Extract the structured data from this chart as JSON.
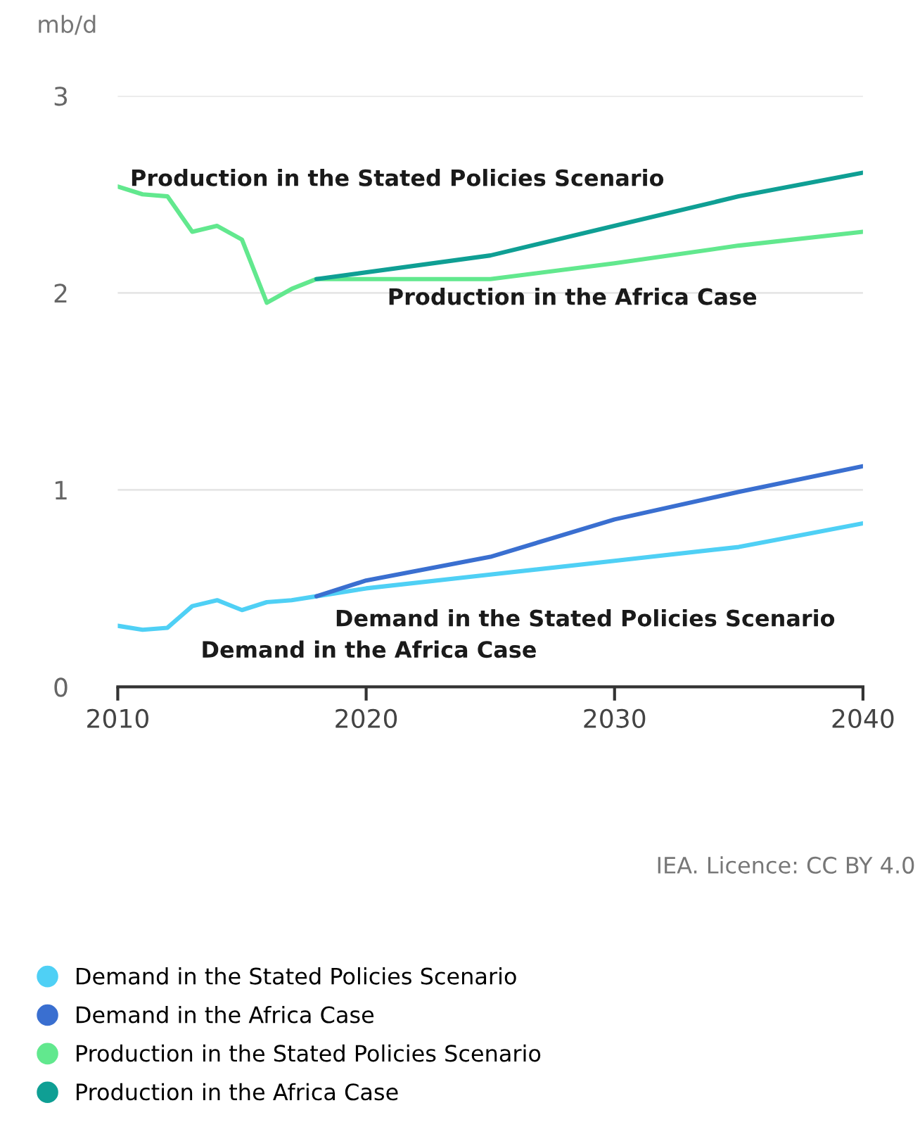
{
  "chart_data": {
    "type": "line",
    "ylabel": "mb/d",
    "xlim": [
      2010,
      2040
    ],
    "xticks": [
      2010,
      2020,
      2030,
      2040
    ],
    "ylim": [
      0,
      3
    ],
    "yticks": [
      0,
      1,
      2,
      3
    ],
    "grid": "y",
    "legend": "bottom",
    "marker": "none",
    "line_style": "solid",
    "series": [
      {
        "name": "Demand in the Stated Policies Scenario",
        "color": "#4fd0f5",
        "x": [
          2010,
          2011,
          2012,
          2013,
          2014,
          2015,
          2016,
          2017,
          2018,
          2020,
          2025,
          2030,
          2035,
          2040
        ],
        "values": [
          0.31,
          0.29,
          0.3,
          0.41,
          0.44,
          0.39,
          0.43,
          0.44,
          0.46,
          0.5,
          0.57,
          0.64,
          0.71,
          0.83
        ]
      },
      {
        "name": "Demand in the Africa Case",
        "color": "#3a6fd0",
        "x": [
          2018,
          2020,
          2025,
          2030,
          2035,
          2040
        ],
        "values": [
          0.46,
          0.54,
          0.66,
          0.85,
          0.99,
          1.12
        ]
      },
      {
        "name": "Production in the Stated Policies Scenario",
        "color": "#62e88e",
        "x": [
          2010,
          2011,
          2012,
          2013,
          2014,
          2015,
          2016,
          2017,
          2018,
          2025,
          2030,
          2035,
          2040
        ],
        "values": [
          2.54,
          2.5,
          2.49,
          2.31,
          2.34,
          2.27,
          1.95,
          2.02,
          2.07,
          2.07,
          2.15,
          2.24,
          2.31
        ]
      },
      {
        "name": "Production in the Africa Case",
        "color": "#0f9f94",
        "x": [
          2018,
          2025,
          2030,
          2035,
          2040
        ],
        "values": [
          2.07,
          2.19,
          2.34,
          2.49,
          2.61
        ]
      }
    ],
    "annotations": [
      "Production in the Stated Policies Scenario",
      "Production in the Africa Case",
      "Demand in the Stated Policies Scenario",
      "Demand in the Africa Case",
      "IEA. Licence: CC BY 4.0"
    ]
  }
}
